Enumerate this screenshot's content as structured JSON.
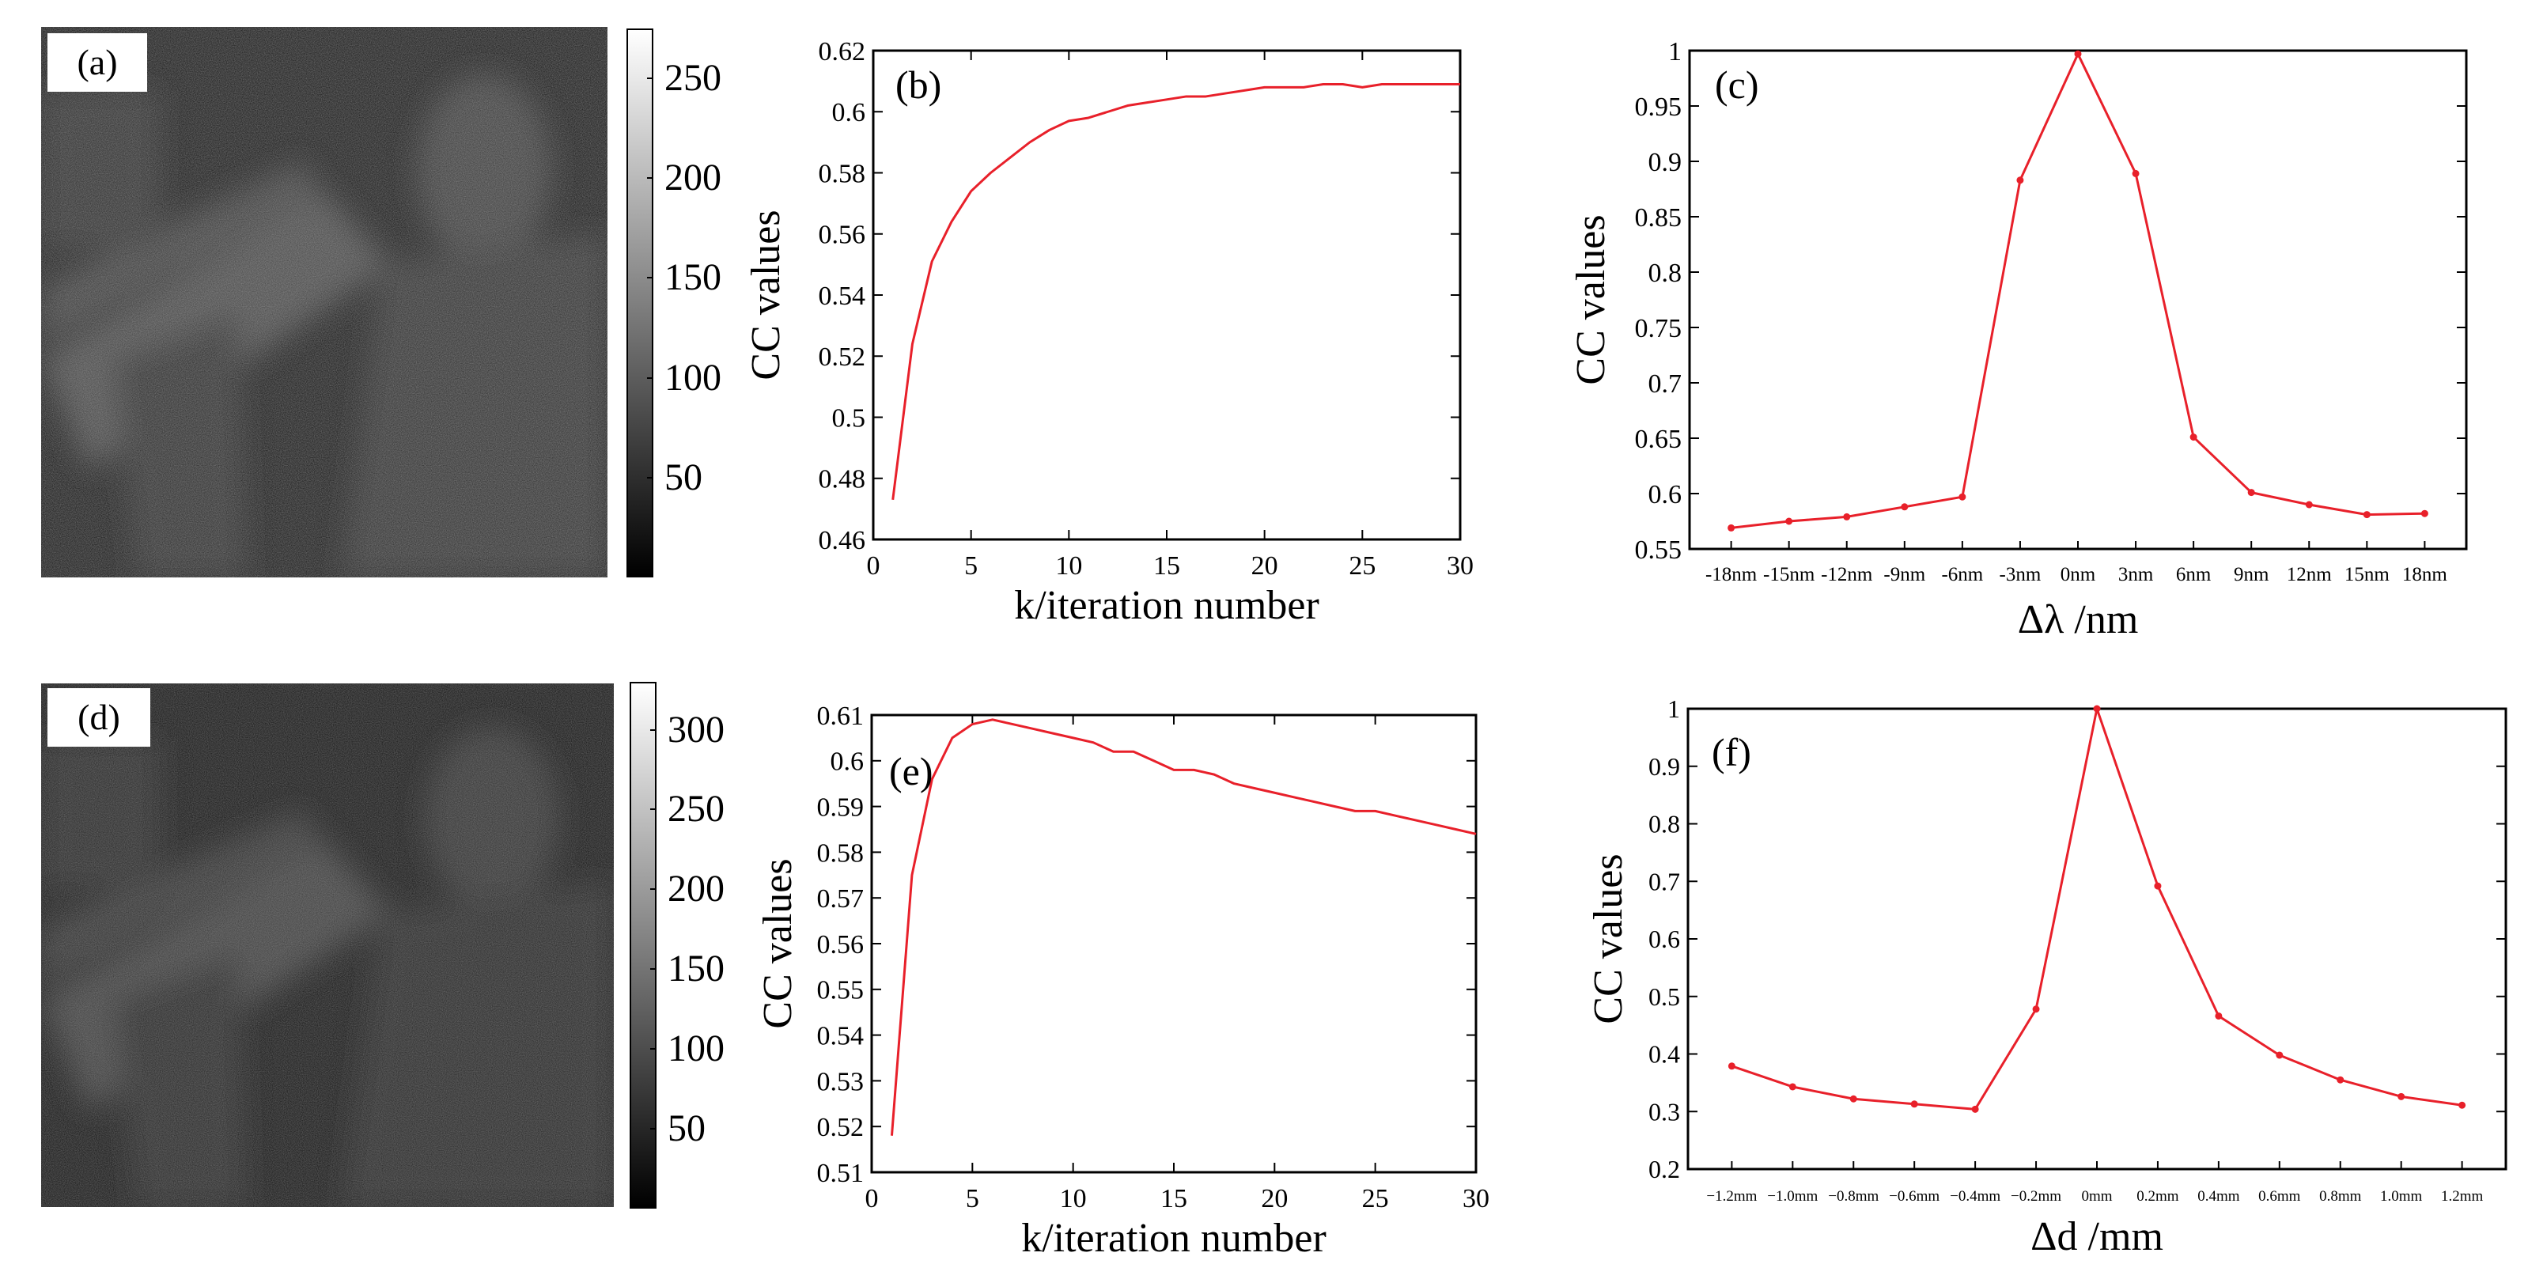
{
  "colors": {
    "series": "#e8202a",
    "axis": "#000000",
    "image_background": "#151515"
  },
  "image_panels": [
    {
      "label": "(a)",
      "colorbar_ticks": [
        50,
        100,
        150,
        200,
        250
      ],
      "colorbar_range": [
        0,
        275
      ]
    },
    {
      "label": "(d)",
      "colorbar_ticks": [
        50,
        100,
        150,
        200,
        250,
        300
      ],
      "colorbar_range": [
        0,
        330
      ]
    }
  ],
  "chart_data": [
    {
      "type": "line",
      "panel_label": "(b)",
      "xlabel": "k/iteration number",
      "ylabel": "CC values",
      "xlim": [
        0,
        30
      ],
      "ylim": [
        0.46,
        0.62
      ],
      "xticks": [
        0,
        5,
        10,
        15,
        20,
        25,
        30
      ],
      "yticks": [
        0.46,
        0.48,
        0.5,
        0.52,
        0.54,
        0.56,
        0.58,
        0.6,
        0.62
      ],
      "ytick_labels": [
        "0.46",
        "0.48",
        "0.5",
        "0.52",
        "0.54",
        "0.56",
        "0.58",
        "0.6",
        "0.62"
      ],
      "markers": false,
      "x": [
        1,
        2,
        3,
        4,
        5,
        6,
        7,
        8,
        9,
        10,
        11,
        12,
        13,
        14,
        15,
        16,
        17,
        18,
        19,
        20,
        21,
        22,
        23,
        24,
        25,
        26,
        27,
        28,
        29,
        30
      ],
      "y": [
        0.473,
        0.524,
        0.551,
        0.564,
        0.574,
        0.58,
        0.585,
        0.59,
        0.594,
        0.597,
        0.598,
        0.6,
        0.602,
        0.603,
        0.604,
        0.605,
        0.605,
        0.606,
        0.607,
        0.608,
        0.608,
        0.608,
        0.609,
        0.609,
        0.608,
        0.609,
        0.609,
        0.609,
        0.609,
        0.609
      ]
    },
    {
      "type": "line",
      "panel_label": "(c)",
      "xlabel": "Δλ /nm",
      "ylabel": "CC values",
      "ylim": [
        0.55,
        1
      ],
      "categories": [
        "-18nm",
        "-15nm",
        "-12nm",
        "-9nm",
        "-6nm",
        "-3nm",
        "0nm",
        "3nm",
        "6nm",
        "9nm",
        "12nm",
        "15nm",
        "18nm"
      ],
      "yticks": [
        0.55,
        0.6,
        0.65,
        0.7,
        0.75,
        0.8,
        0.85,
        0.9,
        0.95,
        1
      ],
      "ytick_labels": [
        "0.55",
        "0.6",
        "0.65",
        "0.7",
        "0.75",
        "0.8",
        "0.85",
        "0.9",
        "0.95",
        "1"
      ],
      "markers": true,
      "y": [
        0.569,
        0.575,
        0.579,
        0.588,
        0.597,
        0.883,
        0.997,
        0.889,
        0.651,
        0.601,
        0.59,
        0.581,
        0.582
      ]
    },
    {
      "type": "line",
      "panel_label": "(e)",
      "xlabel": "k/iteration number",
      "ylabel": "CC values",
      "xlim": [
        0,
        30
      ],
      "ylim": [
        0.51,
        0.61
      ],
      "xticks": [
        0,
        5,
        10,
        15,
        20,
        25,
        30
      ],
      "yticks": [
        0.51,
        0.52,
        0.53,
        0.54,
        0.55,
        0.56,
        0.57,
        0.58,
        0.59,
        0.6,
        0.61
      ],
      "ytick_labels": [
        "0.51",
        "0.52",
        "0.53",
        "0.54",
        "0.55",
        "0.56",
        "0.57",
        "0.58",
        "0.59",
        "0.6",
        "0.61"
      ],
      "markers": false,
      "x": [
        1,
        2,
        3,
        4,
        5,
        6,
        7,
        8,
        9,
        10,
        11,
        12,
        13,
        14,
        15,
        16,
        17,
        18,
        19,
        20,
        21,
        22,
        23,
        24,
        25,
        26,
        27,
        28,
        29,
        30
      ],
      "y": [
        0.518,
        0.575,
        0.596,
        0.605,
        0.608,
        0.609,
        0.608,
        0.607,
        0.606,
        0.605,
        0.604,
        0.602,
        0.602,
        0.6,
        0.598,
        0.598,
        0.597,
        0.595,
        0.594,
        0.593,
        0.592,
        0.591,
        0.59,
        0.589,
        0.589,
        0.588,
        0.587,
        0.586,
        0.585,
        0.584
      ]
    },
    {
      "type": "line",
      "panel_label": "(f)",
      "xlabel": "Δd /mm",
      "ylabel": "CC values",
      "ylim": [
        0.2,
        1
      ],
      "categories": [
        "−1.2mm",
        "−1.0mm",
        "−0.8mm",
        "−0.6mm",
        "−0.4mm",
        "−0.2mm",
        "0mm",
        "0.2mm",
        "0.4mm",
        "0.6mm",
        "0.8mm",
        "1.0mm",
        "1.2mm"
      ],
      "yticks": [
        0.2,
        0.3,
        0.4,
        0.5,
        0.6,
        0.7,
        0.8,
        0.9,
        1
      ],
      "ytick_labels": [
        "0.2",
        "0.3",
        "0.4",
        "0.5",
        "0.6",
        "0.7",
        "0.8",
        "0.9",
        "1"
      ],
      "markers": true,
      "y": [
        0.379,
        0.343,
        0.322,
        0.313,
        0.304,
        0.478,
        1.0,
        0.692,
        0.466,
        0.398,
        0.355,
        0.326,
        0.311
      ]
    }
  ]
}
